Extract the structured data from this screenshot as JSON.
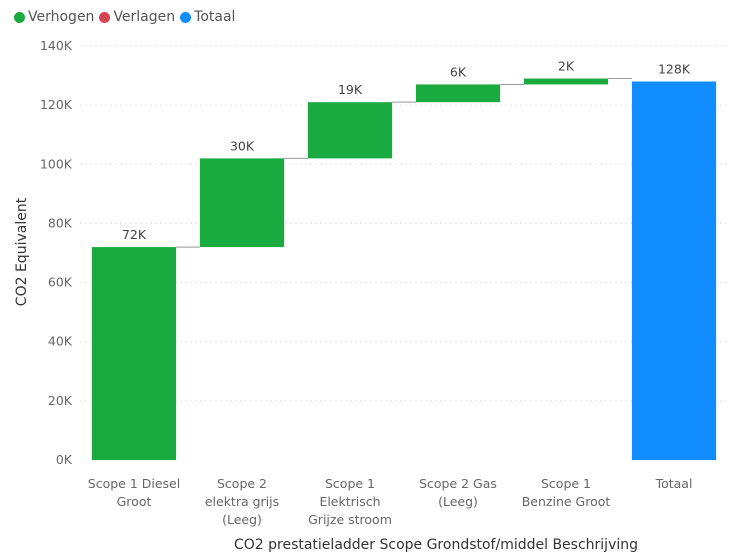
{
  "legend": [
    {
      "label": "Verhogen",
      "color": "#1AAB40"
    },
    {
      "label": "Verlagen",
      "color": "#D64550"
    },
    {
      "label": "Totaal",
      "color": "#118DFF"
    }
  ],
  "chart_data": {
    "type": "bar",
    "subtype": "waterfall",
    "categories": [
      [
        "Scope 1 Diesel",
        "Groot"
      ],
      [
        "Scope 2",
        "elektra grijs",
        "(Leeg)"
      ],
      [
        "Scope 1",
        "Elektrisch",
        "Grijze stroom"
      ],
      [
        "Scope 2 Gas",
        "(Leeg)"
      ],
      [
        "Scope 1",
        "Benzine Groot"
      ],
      [
        "Totaal"
      ]
    ],
    "values": [
      72,
      30,
      19,
      6,
      2,
      128
    ],
    "value_labels": [
      "72K",
      "30K",
      "19K",
      "6K",
      "2K",
      "128K"
    ],
    "kinds": [
      "increase",
      "increase",
      "increase",
      "increase",
      "increase",
      "total"
    ],
    "unit": "K",
    "ylim": [
      0,
      140
    ],
    "yticks": [
      "0K",
      "20K",
      "40K",
      "60K",
      "80K",
      "100K",
      "120K",
      "140K"
    ],
    "xlabel": "CO2 prestatieladder Scope Grondstof/middel Beschrijving",
    "ylabel": "CO2 Equivalent",
    "grid": true,
    "legend_position": "top-left",
    "colors": {
      "increase": "#1AAB40",
      "decrease": "#D64550",
      "total": "#118DFF"
    }
  }
}
